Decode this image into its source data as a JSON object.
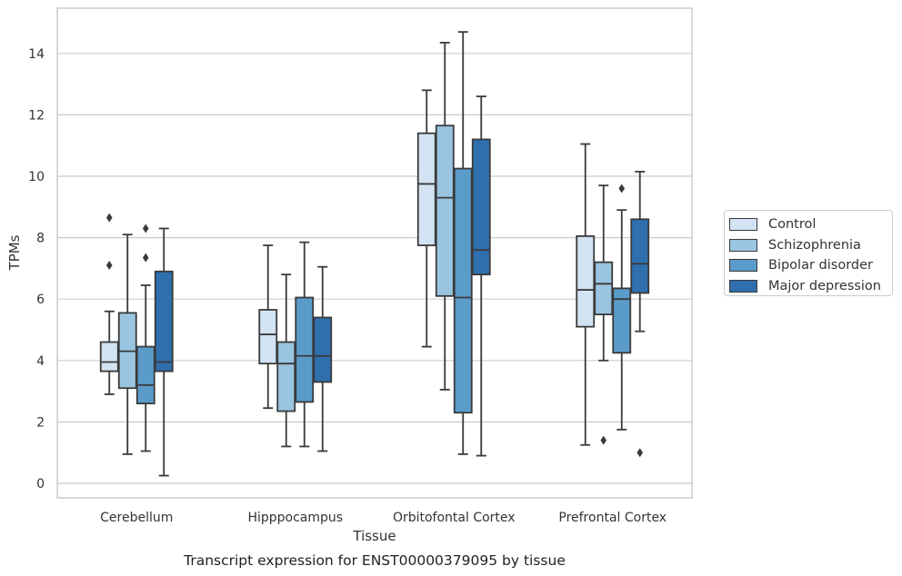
{
  "chart_data": {
    "type": "box",
    "title": "",
    "caption": "Transcript expression for ENST00000379095 by tissue",
    "xlabel": "Tissue",
    "ylabel": "TPMs",
    "ylim": [
      -0.4,
      15.5
    ],
    "yticks": [
      0,
      2,
      4,
      6,
      8,
      10,
      12,
      14
    ],
    "grid": "y",
    "legend_position": "outside-right",
    "categories": [
      "Cerebellum",
      "Hipppocampus",
      "Orbitofontal Cortex",
      "Prefrontal Cortex"
    ],
    "series": [
      {
        "name": "Control",
        "color": "#d2e3f3",
        "boxes": [
          {
            "whislo": 2.9,
            "q1": 3.65,
            "median": 3.95,
            "q3": 4.6,
            "whishi": 5.6,
            "fliers": [
              7.1,
              8.65
            ]
          },
          {
            "whislo": 2.45,
            "q1": 3.9,
            "median": 4.85,
            "q3": 5.65,
            "whishi": 7.75,
            "fliers": []
          },
          {
            "whislo": 4.45,
            "q1": 7.75,
            "median": 9.75,
            "q3": 11.4,
            "whishi": 12.8,
            "fliers": []
          },
          {
            "whislo": 1.25,
            "q1": 5.1,
            "median": 6.3,
            "q3": 8.05,
            "whishi": 11.05,
            "fliers": []
          }
        ]
      },
      {
        "name": "Schizophrenia",
        "color": "#9ac5e0",
        "boxes": [
          {
            "whislo": 0.95,
            "q1": 3.1,
            "median": 4.3,
            "q3": 5.55,
            "whishi": 8.1,
            "fliers": []
          },
          {
            "whislo": 1.2,
            "q1": 2.35,
            "median": 3.9,
            "q3": 4.6,
            "whishi": 6.8,
            "fliers": []
          },
          {
            "whislo": 3.05,
            "q1": 6.1,
            "median": 9.3,
            "q3": 11.65,
            "whishi": 14.35,
            "fliers": []
          },
          {
            "whislo": 4.0,
            "q1": 5.5,
            "median": 6.5,
            "q3": 7.2,
            "whishi": 9.7,
            "fliers": [
              1.4
            ]
          }
        ]
      },
      {
        "name": "Bipolar disorder",
        "color": "#5a9bc9",
        "boxes": [
          {
            "whislo": 1.05,
            "q1": 2.6,
            "median": 3.2,
            "q3": 4.45,
            "whishi": 6.45,
            "fliers": [
              7.35,
              8.3
            ]
          },
          {
            "whislo": 1.2,
            "q1": 2.65,
            "median": 4.15,
            "q3": 6.05,
            "whishi": 7.85,
            "fliers": []
          },
          {
            "whislo": 0.95,
            "q1": 2.3,
            "median": 6.05,
            "q3": 10.25,
            "whishi": 14.7,
            "fliers": []
          },
          {
            "whislo": 1.75,
            "q1": 4.25,
            "median": 6.0,
            "q3": 6.35,
            "whishi": 8.9,
            "fliers": [
              9.6
            ]
          }
        ]
      },
      {
        "name": "Major depression",
        "color": "#2f6fae",
        "boxes": [
          {
            "whislo": 0.25,
            "q1": 3.65,
            "median": 3.95,
            "q3": 6.9,
            "whishi": 8.3,
            "fliers": []
          },
          {
            "whislo": 1.05,
            "q1": 3.3,
            "median": 4.15,
            "q3": 5.4,
            "whishi": 7.05,
            "fliers": []
          },
          {
            "whislo": 0.9,
            "q1": 6.8,
            "median": 7.6,
            "q3": 11.2,
            "whishi": 12.6,
            "fliers": []
          },
          {
            "whislo": 4.95,
            "q1": 6.2,
            "median": 7.15,
            "q3": 8.6,
            "whishi": 10.15,
            "fliers": [
              1.0
            ]
          }
        ]
      }
    ]
  }
}
